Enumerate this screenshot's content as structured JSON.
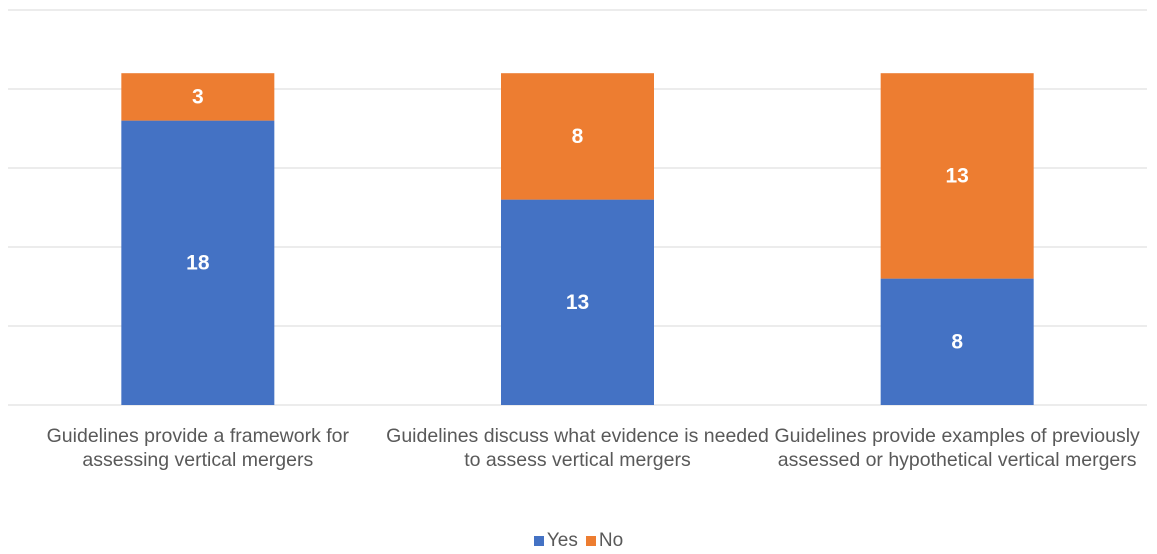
{
  "chart_data": {
    "type": "stacked_bar",
    "categories": [
      "Guidelines provide a framework for assessing vertical mergers",
      "Guidelines discuss what evidence is needed to assess vertical mergers",
      "Guidelines provide examples of previously assessed or hypothetical vertical mergers"
    ],
    "series": [
      {
        "name": "Yes",
        "color": "#4472c4",
        "values": [
          18,
          13,
          8
        ]
      },
      {
        "name": "No",
        "color": "#ed7d31",
        "values": [
          3,
          8,
          13
        ]
      }
    ],
    "ylim": [
      0,
      25
    ],
    "yticks": [
      0,
      5,
      10,
      15,
      20,
      25
    ],
    "grid": true,
    "legend": "bottom"
  }
}
